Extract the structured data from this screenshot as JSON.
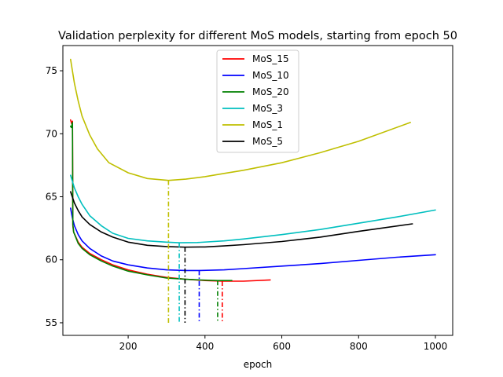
{
  "chart_data": {
    "type": "line",
    "title": "Validation perplexity for different MoS models, starting from epoch 50",
    "xlabel": "epoch",
    "ylabel": "",
    "xlim": [
      30,
      1045
    ],
    "ylim": [
      54,
      77
    ],
    "xticks": [
      200,
      400,
      600,
      800,
      1000
    ],
    "yticks": [
      55,
      60,
      65,
      70,
      75
    ],
    "legend_position": "top-center",
    "grid": false,
    "marker_bottom": 55,
    "series": [
      {
        "name": "MoS_15",
        "color": "#ff0000",
        "min_epoch": 445,
        "min_value": 58.3,
        "x": [
          50,
          53,
          55,
          56,
          58,
          70,
          80,
          100,
          130,
          160,
          200,
          250,
          300,
          350,
          400,
          445,
          500,
          570
        ],
        "y": [
          71.1,
          70.8,
          71.0,
          62.7,
          62.2,
          61.4,
          61.0,
          60.5,
          60.0,
          59.6,
          59.2,
          58.85,
          58.6,
          58.45,
          58.35,
          58.3,
          58.3,
          58.4
        ]
      },
      {
        "name": "MoS_10",
        "color": "#0000ff",
        "min_epoch": 385,
        "min_value": 59.15,
        "x": [
          50,
          55,
          60,
          70,
          80,
          100,
          130,
          160,
          200,
          250,
          300,
          350,
          385,
          450,
          500,
          600,
          700,
          800,
          900,
          1000
        ],
        "y": [
          64.1,
          63.3,
          62.7,
          62.0,
          61.5,
          60.9,
          60.3,
          59.9,
          59.6,
          59.35,
          59.2,
          59.15,
          59.15,
          59.2,
          59.3,
          59.5,
          59.7,
          59.95,
          60.2,
          60.4
        ]
      },
      {
        "name": "MoS_20",
        "color": "#008000",
        "min_epoch": 433,
        "min_value": 58.35,
        "x": [
          50,
          52,
          55,
          56,
          58,
          70,
          80,
          100,
          130,
          160,
          200,
          250,
          300,
          350,
          400,
          433,
          470
        ],
        "y": [
          70.6,
          70.5,
          70.9,
          62.8,
          62.2,
          61.3,
          60.9,
          60.4,
          59.9,
          59.5,
          59.1,
          58.8,
          58.55,
          58.45,
          58.38,
          58.35,
          58.35
        ]
      },
      {
        "name": "MoS_3",
        "color": "#00bfbf",
        "min_epoch": 333,
        "min_value": 61.35,
        "x": [
          50,
          60,
          70,
          80,
          100,
          130,
          160,
          200,
          250,
          300,
          333,
          380,
          450,
          500,
          600,
          700,
          800,
          900,
          1000
        ],
        "y": [
          66.7,
          65.7,
          65.0,
          64.4,
          63.5,
          62.7,
          62.1,
          61.7,
          61.5,
          61.4,
          61.35,
          61.37,
          61.5,
          61.65,
          62.0,
          62.4,
          62.9,
          63.4,
          63.95
        ]
      },
      {
        "name": "MoS_1",
        "color": "#bfbf00",
        "min_epoch": 305,
        "min_value": 66.3,
        "x": [
          50,
          60,
          70,
          80,
          100,
          120,
          150,
          200,
          250,
          305,
          350,
          400,
          450,
          500,
          600,
          700,
          800,
          935
        ],
        "y": [
          75.9,
          74.0,
          72.6,
          71.4,
          69.9,
          68.8,
          67.7,
          66.9,
          66.45,
          66.3,
          66.4,
          66.6,
          66.85,
          67.1,
          67.7,
          68.5,
          69.4,
          70.9
        ]
      },
      {
        "name": "MoS_5",
        "color": "#000000",
        "min_epoch": 348,
        "min_value": 61.0,
        "x": [
          50,
          60,
          70,
          80,
          100,
          130,
          160,
          200,
          250,
          300,
          348,
          400,
          450,
          500,
          600,
          700,
          800,
          940
        ],
        "y": [
          65.4,
          64.5,
          63.9,
          63.4,
          62.8,
          62.2,
          61.8,
          61.4,
          61.15,
          61.05,
          61.0,
          61.02,
          61.1,
          61.2,
          61.45,
          61.8,
          62.25,
          62.85
        ]
      }
    ]
  }
}
